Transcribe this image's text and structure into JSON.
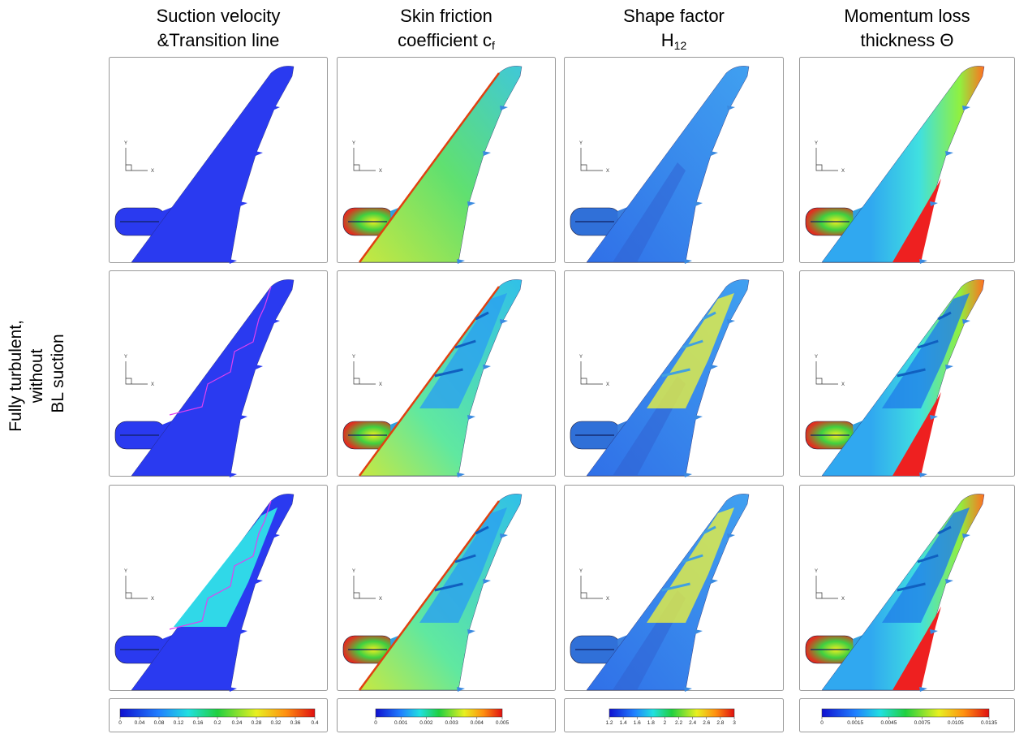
{
  "column_headers": [
    {
      "line1": "Suction velocity",
      "line2": "&Transition line"
    },
    {
      "line1": "Skin friction",
      "line2": "coefficient c",
      "subscript": "f"
    },
    {
      "line1": "Shape factor",
      "line2": "H",
      "subscript": "12"
    },
    {
      "line1": "Momentum loss",
      "line2": "thickness Θ"
    }
  ],
  "row_label": [
    "Fully turbulent,",
    "without",
    "BL suction"
  ],
  "axis_labels": {
    "x": "X",
    "y": "Y"
  },
  "colorbars": [
    {
      "ticks": [
        "0",
        "0.04",
        "0.08",
        "0.12",
        "0.16",
        "0.2",
        "0.24",
        "0.28",
        "0.32",
        "0.36",
        "0.4"
      ]
    },
    {
      "ticks": [
        "0",
        "0.001",
        "0.002",
        "0.003",
        "0.004",
        "0.005"
      ]
    },
    {
      "ticks": [
        "1.2",
        "1.4",
        "1.6",
        "1.8",
        "2",
        "2.2",
        "2.4",
        "2.6",
        "2.8",
        "3"
      ]
    },
    {
      "ticks": [
        "0",
        "0.0015",
        "0.0045",
        "0.0075",
        "0.0105",
        "0.0135"
      ]
    }
  ]
}
